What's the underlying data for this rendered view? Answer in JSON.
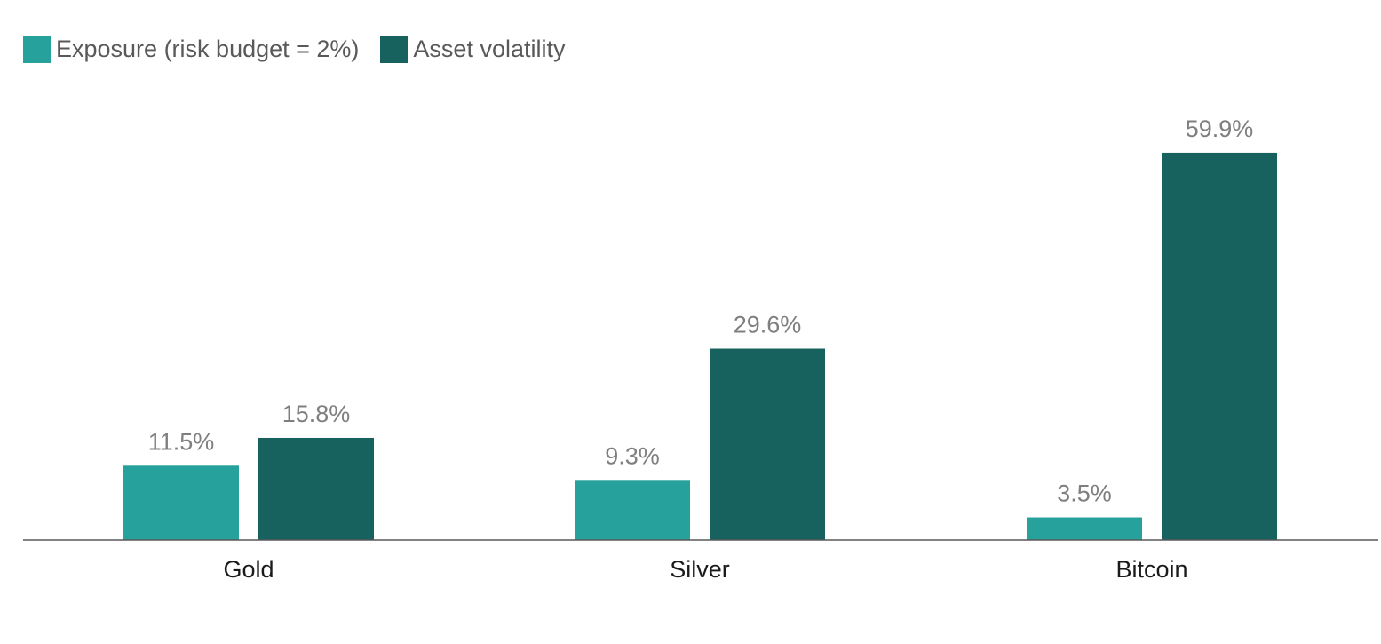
{
  "chart_data": {
    "type": "bar",
    "title": "",
    "xlabel": "",
    "ylabel": "",
    "categories": [
      "Gold",
      "Silver",
      "Bitcoin"
    ],
    "series": [
      {
        "name": "Exposure (risk budget = 2%)",
        "color": "#26a19b",
        "values": [
          11.5,
          9.3,
          3.5
        ],
        "labels": [
          "11.5%",
          "9.3%",
          "3.5%"
        ]
      },
      {
        "name": "Asset volatility",
        "color": "#17625e",
        "values": [
          15.8,
          29.6,
          59.9
        ],
        "labels": [
          "15.8%",
          "29.6%",
          "59.9%"
        ]
      }
    ],
    "ylim": [
      0,
      60
    ],
    "grid": false,
    "legend": "top-left"
  },
  "colors": {
    "axis": "#595959",
    "value_label": "#7f7f7f",
    "category_label": "#1a1a1a"
  }
}
